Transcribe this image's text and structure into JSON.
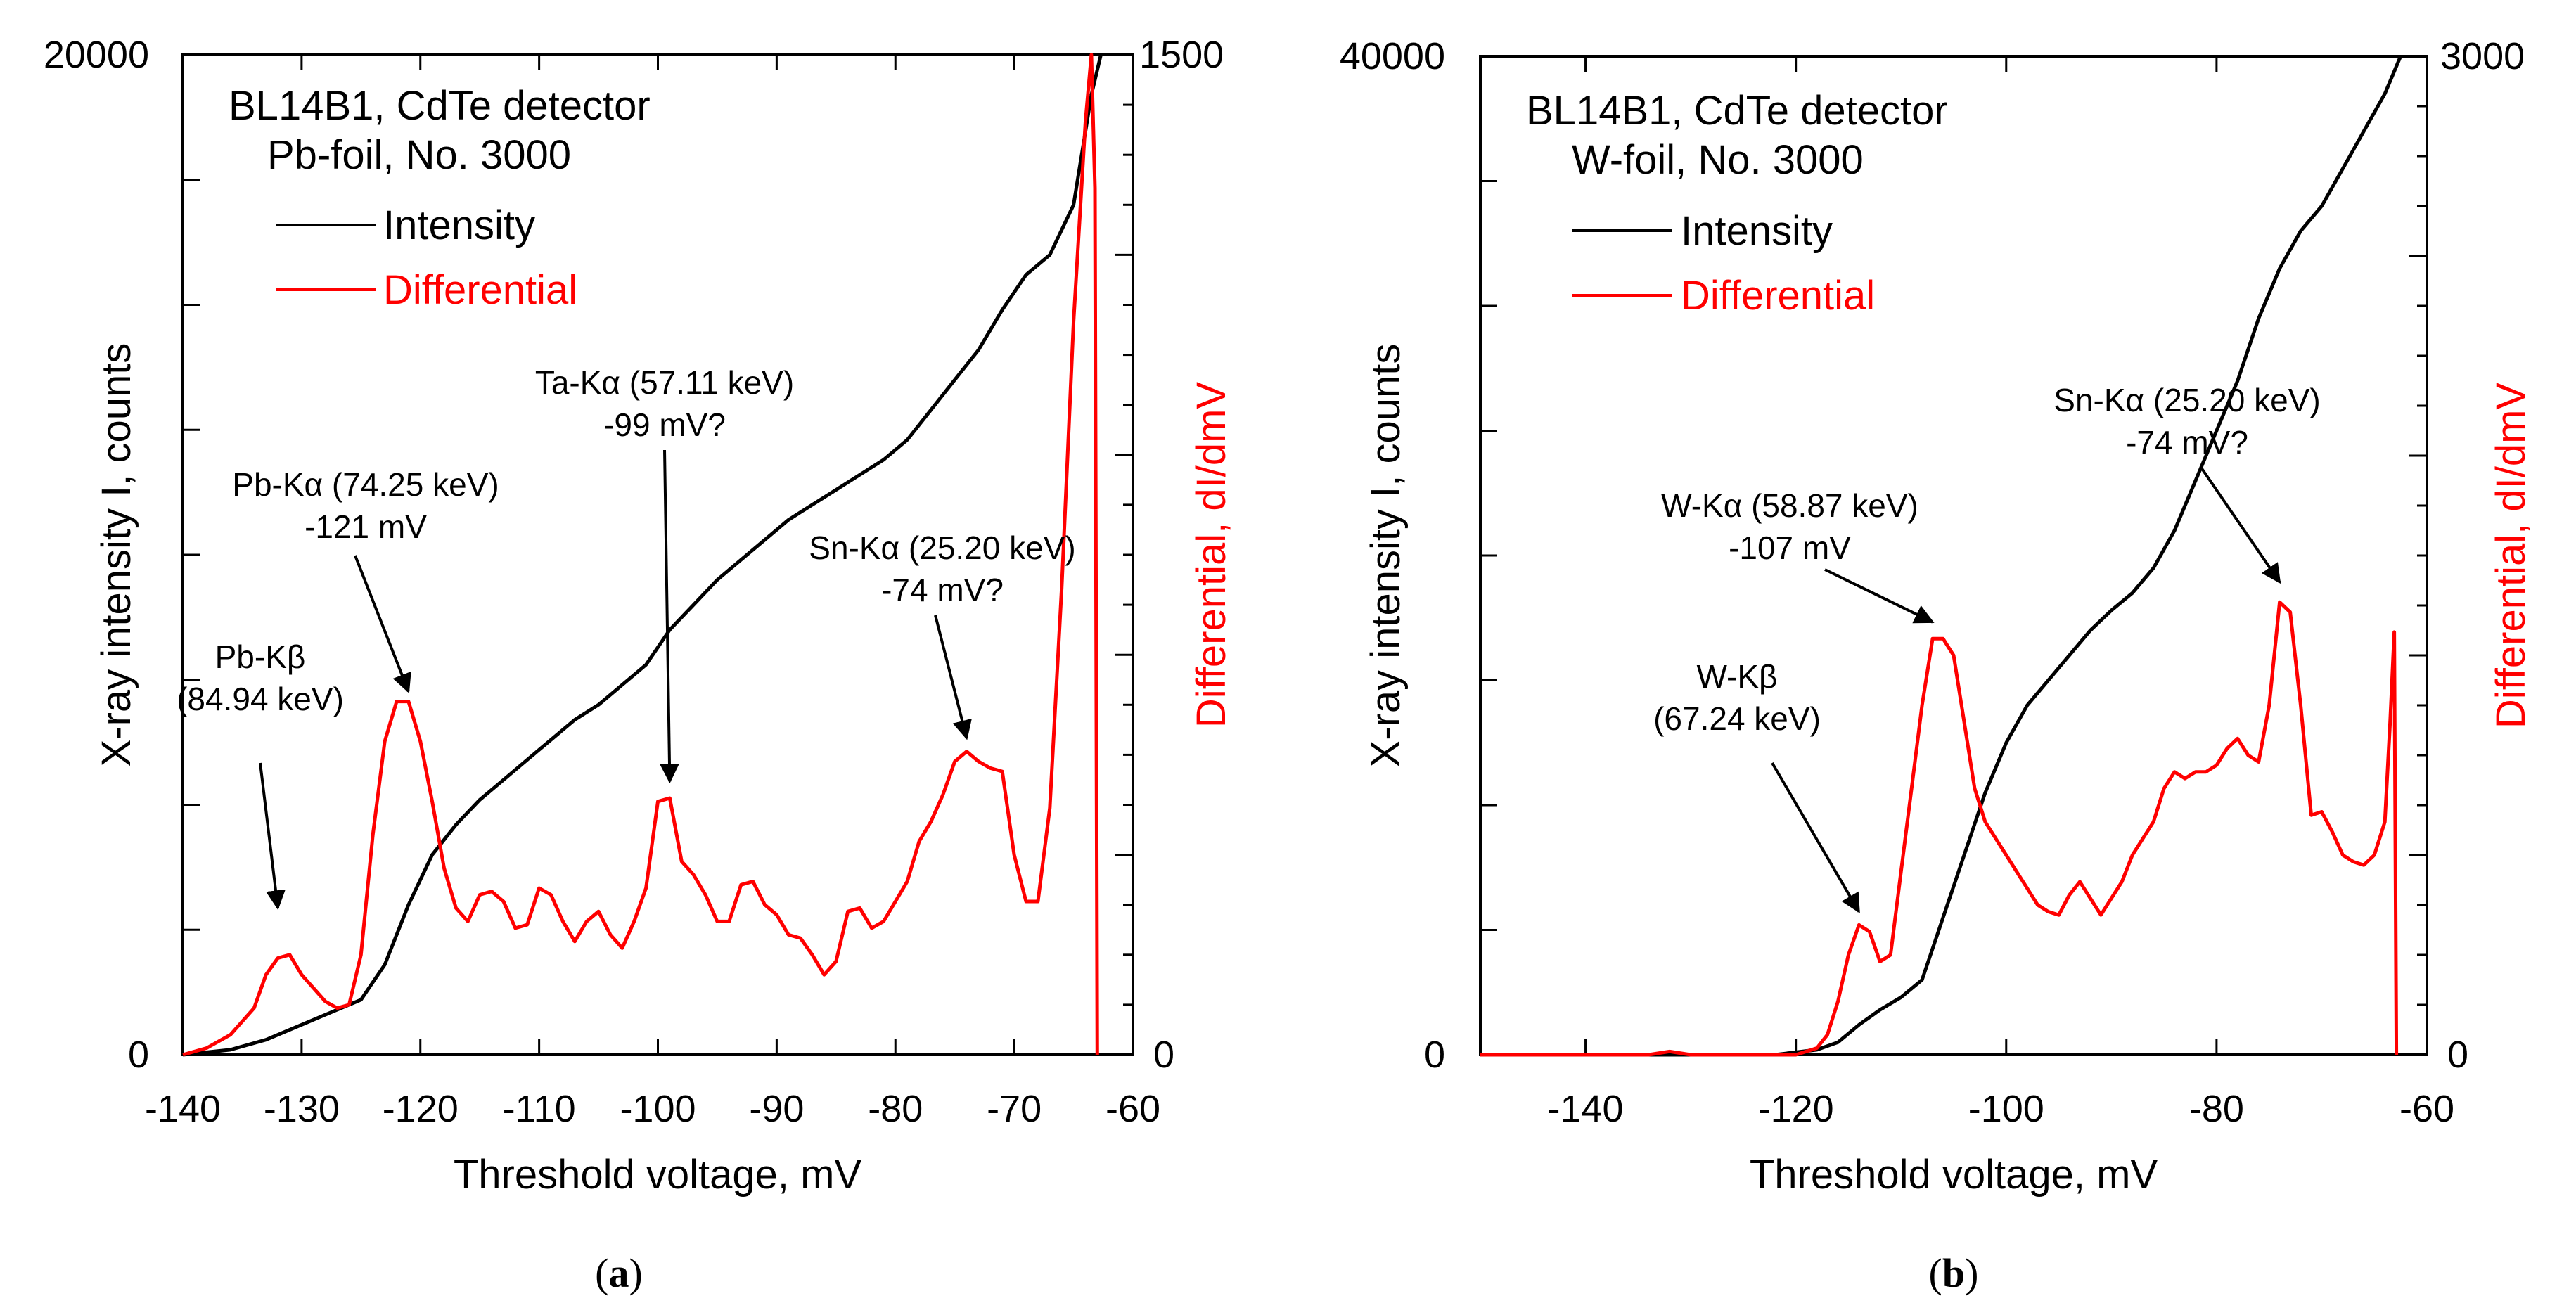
{
  "chart_data": [
    {
      "type": "line",
      "panel_label": "a",
      "legend_title": [
        "BL14B1, CdTe detector",
        "Pb-foil, No. 3000"
      ],
      "legend_entries": [
        {
          "name": "Intensity",
          "color": "#000000"
        },
        {
          "name": "Differential",
          "color": "#ff0000"
        }
      ],
      "xlabel": "Threshold voltage, mV",
      "ylabel_left": "X-ray intensity I, counts",
      "ylabel_right": "Differential, dI/dmV",
      "xlim": [
        -140,
        -60
      ],
      "ylim_left": [
        0,
        20000
      ],
      "ylim_right": [
        0,
        1500
      ],
      "x_ticks": [
        -140,
        -130,
        -120,
        -110,
        -100,
        -90,
        -80,
        -70,
        -60
      ],
      "y_left_labels": [
        "0",
        "20000"
      ],
      "y_right_labels": [
        "0",
        "1500"
      ],
      "series": [
        {
          "name": "Intensity",
          "axis": "left",
          "color": "#000000",
          "points": [
            [
              -140,
              0
            ],
            [
              -136,
              100
            ],
            [
              -133,
              300
            ],
            [
              -130,
              600
            ],
            [
              -127,
              900
            ],
            [
              -125,
              1100
            ],
            [
              -123,
              1800
            ],
            [
              -121,
              3000
            ],
            [
              -119,
              4000
            ],
            [
              -117,
              4600
            ],
            [
              -115,
              5100
            ],
            [
              -113,
              5500
            ],
            [
              -111,
              5900
            ],
            [
              -109,
              6300
            ],
            [
              -107,
              6700
            ],
            [
              -105,
              7000
            ],
            [
              -103,
              7400
            ],
            [
              -101,
              7800
            ],
            [
              -99,
              8500
            ],
            [
              -97,
              9000
            ],
            [
              -95,
              9500
            ],
            [
              -93,
              9900
            ],
            [
              -91,
              10300
            ],
            [
              -89,
              10700
            ],
            [
              -87,
              11000
            ],
            [
              -85,
              11300
            ],
            [
              -83,
              11600
            ],
            [
              -81,
              11900
            ],
            [
              -79,
              12300
            ],
            [
              -77,
              12900
            ],
            [
              -75,
              13500
            ],
            [
              -73,
              14100
            ],
            [
              -71,
              14900
            ],
            [
              -69,
              15600
            ],
            [
              -67,
              16000
            ],
            [
              -65,
              17000
            ],
            [
              -63.5,
              19200
            ],
            [
              -62.7,
              20000
            ]
          ]
        },
        {
          "name": "Differential",
          "axis": "right",
          "color": "#ff0000",
          "points": [
            [
              -140,
              0
            ],
            [
              -138,
              10
            ],
            [
              -136,
              30
            ],
            [
              -134,
              70
            ],
            [
              -133,
              120
            ],
            [
              -132,
              145
            ],
            [
              -131,
              150
            ],
            [
              -130,
              120
            ],
            [
              -129,
              100
            ],
            [
              -128,
              80
            ],
            [
              -127,
              70
            ],
            [
              -126,
              75
            ],
            [
              -125,
              150
            ],
            [
              -124,
              330
            ],
            [
              -123,
              470
            ],
            [
              -122,
              530
            ],
            [
              -121,
              530
            ],
            [
              -120,
              470
            ],
            [
              -119,
              380
            ],
            [
              -118,
              280
            ],
            [
              -117,
              220
            ],
            [
              -116,
              200
            ],
            [
              -115,
              240
            ],
            [
              -114,
              245
            ],
            [
              -113,
              230
            ],
            [
              -112,
              190
            ],
            [
              -111,
              195
            ],
            [
              -110,
              250
            ],
            [
              -109,
              240
            ],
            [
              -108,
              200
            ],
            [
              -107,
              170
            ],
            [
              -106,
              200
            ],
            [
              -105,
              215
            ],
            [
              -104,
              180
            ],
            [
              -103,
              160
            ],
            [
              -102,
              200
            ],
            [
              -101,
              250
            ],
            [
              -100,
              380
            ],
            [
              -99,
              385
            ],
            [
              -98,
              290
            ],
            [
              -97,
              270
            ],
            [
              -96,
              240
            ],
            [
              -95,
              200
            ],
            [
              -94,
              200
            ],
            [
              -93,
              255
            ],
            [
              -92,
              260
            ],
            [
              -91,
              225
            ],
            [
              -90,
              210
            ],
            [
              -89,
              180
            ],
            [
              -88,
              175
            ],
            [
              -87,
              150
            ],
            [
              -86,
              120
            ],
            [
              -85,
              140
            ],
            [
              -84,
              215
            ],
            [
              -83,
              220
            ],
            [
              -82,
              190
            ],
            [
              -81,
              200
            ],
            [
              -80,
              230
            ],
            [
              -79,
              260
            ],
            [
              -78,
              320
            ],
            [
              -77,
              350
            ],
            [
              -76,
              390
            ],
            [
              -75,
              440
            ],
            [
              -74,
              455
            ],
            [
              -73,
              440
            ],
            [
              -72,
              430
            ],
            [
              -71,
              425
            ],
            [
              -70,
              300
            ],
            [
              -69,
              230
            ],
            [
              -68,
              230
            ],
            [
              -67,
              370
            ],
            [
              -66,
              700
            ],
            [
              -65,
              1100
            ],
            [
              -64,
              1400
            ],
            [
              -63.5,
              1500
            ],
            [
              -63.2,
              1300
            ],
            [
              -63,
              0
            ]
          ]
        }
      ],
      "annotations": [
        {
          "lines": [
            "Pb-Kβ",
            "(84.94 keV)"
          ],
          "target": [
            -132,
            220
          ]
        },
        {
          "lines": [
            "Pb-Kα (74.25 keV)",
            "-121 mV"
          ],
          "target": [
            -121,
            545
          ]
        },
        {
          "lines": [
            "Ta-Kα (57.11 keV)",
            "-99 mV?"
          ],
          "target": [
            -99,
            410
          ]
        },
        {
          "lines": [
            "Sn-Kα (25.20 keV)",
            "-74 mV?"
          ],
          "target": [
            -74,
            475
          ]
        }
      ]
    },
    {
      "type": "line",
      "panel_label": "b",
      "legend_title": [
        "BL14B1, CdTe detector",
        "W-foil, No. 3000"
      ],
      "legend_entries": [
        {
          "name": "Intensity",
          "color": "#000000"
        },
        {
          "name": "Differential",
          "color": "#ff0000"
        }
      ],
      "xlabel": "Threshold voltage, mV",
      "ylabel_left": "X-ray intensity I, counts",
      "ylabel_right": "Differential, dI/dmV",
      "xlim": [
        -150,
        -60
      ],
      "ylim_left": [
        0,
        40000
      ],
      "ylim_right": [
        0,
        3000
      ],
      "x_ticks": [
        -140,
        -120,
        -100,
        -80,
        -60
      ],
      "y_left_labels": [
        "0",
        "40000"
      ],
      "y_right_labels": [
        "0",
        "3000"
      ],
      "series": [
        {
          "name": "Intensity",
          "axis": "left",
          "color": "#000000",
          "points": [
            [
              -150,
              0
            ],
            [
              -122,
              0
            ],
            [
              -118,
              200
            ],
            [
              -116,
              500
            ],
            [
              -114,
              1200
            ],
            [
              -112,
              1800
            ],
            [
              -110,
              2300
            ],
            [
              -108,
              3000
            ],
            [
              -106,
              5500
            ],
            [
              -104,
              8000
            ],
            [
              -102,
              10500
            ],
            [
              -100,
              12500
            ],
            [
              -98,
              14000
            ],
            [
              -96,
              15000
            ],
            [
              -94,
              16000
            ],
            [
              -92,
              17000
            ],
            [
              -90,
              17800
            ],
            [
              -88,
              18500
            ],
            [
              -86,
              19500
            ],
            [
              -84,
              21000
            ],
            [
              -82,
              23000
            ],
            [
              -80,
              25000
            ],
            [
              -78,
              27000
            ],
            [
              -76,
              29500
            ],
            [
              -74,
              31500
            ],
            [
              -72,
              33000
            ],
            [
              -70,
              34000
            ],
            [
              -68,
              35500
            ],
            [
              -66,
              37000
            ],
            [
              -64,
              38500
            ],
            [
              -62.5,
              40000
            ]
          ]
        },
        {
          "name": "Differential",
          "axis": "right",
          "color": "#ff0000",
          "points": [
            [
              -150,
              0
            ],
            [
              -134,
              0
            ],
            [
              -132,
              10
            ],
            [
              -130,
              0
            ],
            [
              -120,
              0
            ],
            [
              -118,
              20
            ],
            [
              -117,
              60
            ],
            [
              -116,
              160
            ],
            [
              -115,
              300
            ],
            [
              -114,
              390
            ],
            [
              -113,
              370
            ],
            [
              -112,
              280
            ],
            [
              -111,
              300
            ],
            [
              -110,
              550
            ],
            [
              -109,
              800
            ],
            [
              -108,
              1050
            ],
            [
              -107,
              1250
            ],
            [
              -106,
              1250
            ],
            [
              -105,
              1200
            ],
            [
              -104,
              1000
            ],
            [
              -103,
              800
            ],
            [
              -102,
              700
            ],
            [
              -101,
              650
            ],
            [
              -100,
              600
            ],
            [
              -99,
              550
            ],
            [
              -98,
              500
            ],
            [
              -97,
              450
            ],
            [
              -96,
              430
            ],
            [
              -95,
              420
            ],
            [
              -94,
              480
            ],
            [
              -93,
              520
            ],
            [
              -92,
              470
            ],
            [
              -91,
              420
            ],
            [
              -90,
              470
            ],
            [
              -89,
              520
            ],
            [
              -88,
              600
            ],
            [
              -87,
              650
            ],
            [
              -86,
              700
            ],
            [
              -85,
              800
            ],
            [
              -84,
              850
            ],
            [
              -83,
              830
            ],
            [
              -82,
              850
            ],
            [
              -81,
              850
            ],
            [
              -80,
              870
            ],
            [
              -79,
              920
            ],
            [
              -78,
              950
            ],
            [
              -77,
              900
            ],
            [
              -76,
              880
            ],
            [
              -75,
              1050
            ],
            [
              -74,
              1360
            ],
            [
              -73,
              1330
            ],
            [
              -72,
              1050
            ],
            [
              -71,
              720
            ],
            [
              -70,
              730
            ],
            [
              -69,
              670
            ],
            [
              -68,
              600
            ],
            [
              -67,
              580
            ],
            [
              -66,
              570
            ],
            [
              -65,
              600
            ],
            [
              -64,
              700
            ],
            [
              -63.5,
              1000
            ],
            [
              -63.1,
              1270
            ],
            [
              -62.9,
              0
            ]
          ]
        }
      ],
      "annotations": [
        {
          "lines": [
            "W-Kβ",
            "(67.24 keV)"
          ],
          "target": [
            -114,
            430
          ]
        },
        {
          "lines": [
            "W-Kα (58.87 keV)",
            "-107 mV"
          ],
          "target": [
            -107,
            1300
          ]
        },
        {
          "lines": [
            "Sn-Kα (25.20 keV)",
            "-74 mV?"
          ],
          "target": [
            -74,
            1420
          ]
        }
      ]
    }
  ]
}
